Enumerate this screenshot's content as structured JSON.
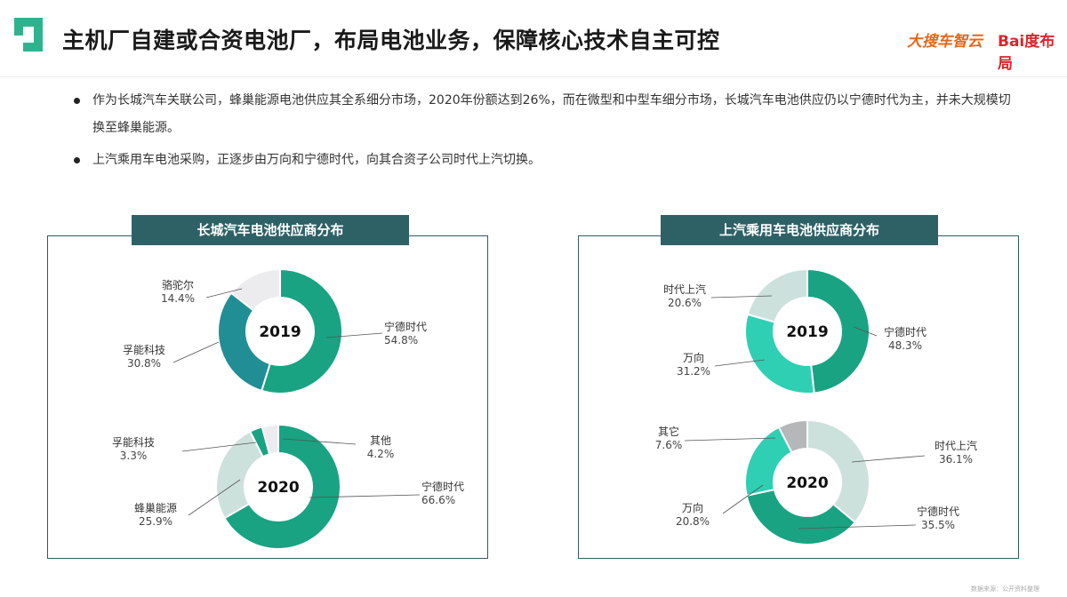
{
  "header": {
    "title": "主机厂自建或合资电池厂，布局电池业务，保障核心技术自主可控",
    "brand_a": "大搜车智云",
    "brand_b": "Bai度布局"
  },
  "bullets": [
    "作为长城汽车关联公司，蜂巢能源电池供应其全系细分市场，2020年份额达到26%，而在微型和中型车细分市场，长城汽车电池供应仍以宁德时代为主，并未大规模切换至蜂巢能源。",
    "上汽乘用车电池采购，正逐步由万向和宁德时代，向其合资子公司时代上汽切换。"
  ],
  "panels": [
    {
      "title": "长城汽车电池供应商分布"
    },
    {
      "title": "上汽乘用车电池供应商分布"
    }
  ],
  "colors": {
    "teal_dark": "#19a382",
    "teal_mid": "#218e95",
    "teal_bright": "#2fcfb4",
    "grey_green": "#cde1dc",
    "light_grey": "#ececef",
    "mid_grey": "#b5b7b9",
    "panel_header": "#2e6166"
  },
  "chart_data": [
    {
      "type": "pie",
      "title": "长城汽车电池供应商分布",
      "center_label": "2019",
      "slices": [
        {
          "label": "宁德时代",
          "value": 54.8,
          "display": "54.8%",
          "color": "#19a382"
        },
        {
          "label": "孚能科技",
          "value": 30.8,
          "display": "30.8%",
          "color": "#218e95"
        },
        {
          "label": "骆驼尔",
          "value": 14.4,
          "display": "14.4%",
          "color": "#ececef"
        }
      ]
    },
    {
      "type": "pie",
      "title": "长城汽车电池供应商分布",
      "center_label": "2020",
      "slices": [
        {
          "label": "宁德时代",
          "value": 66.6,
          "display": "66.6%",
          "color": "#19a382"
        },
        {
          "label": "蜂巢能源",
          "value": 25.9,
          "display": "25.9%",
          "color": "#cde1dc"
        },
        {
          "label": "孚能科技",
          "value": 3.3,
          "display": "3.3%",
          "color": "#19a382"
        },
        {
          "label": "其他",
          "value": 4.2,
          "display": "4.2%",
          "color": "#ececef"
        }
      ]
    },
    {
      "type": "pie",
      "title": "上汽乘用车电池供应商分布",
      "center_label": "2019",
      "slices": [
        {
          "label": "宁德时代",
          "value": 48.3,
          "display": "48.3%",
          "color": "#19a382"
        },
        {
          "label": "万向",
          "value": 31.2,
          "display": "31.2%",
          "color": "#2fcfb4"
        },
        {
          "label": "时代上汽",
          "value": 20.6,
          "display": "20.6%",
          "color": "#cde1dc"
        }
      ]
    },
    {
      "type": "pie",
      "title": "上汽乘用车电池供应商分布",
      "center_label": "2020",
      "slices": [
        {
          "label": "时代上汽",
          "value": 36.1,
          "display": "36.1%",
          "color": "#cde1dc"
        },
        {
          "label": "宁德时代",
          "value": 35.5,
          "display": "35.5%",
          "color": "#19a382"
        },
        {
          "label": "万向",
          "value": 20.8,
          "display": "20.8%",
          "color": "#2fcfb4"
        },
        {
          "label": "其它",
          "value": 7.6,
          "display": "7.6%",
          "color": "#b5b7b9"
        }
      ]
    }
  ],
  "footer": "数据来源：公开资料整理"
}
